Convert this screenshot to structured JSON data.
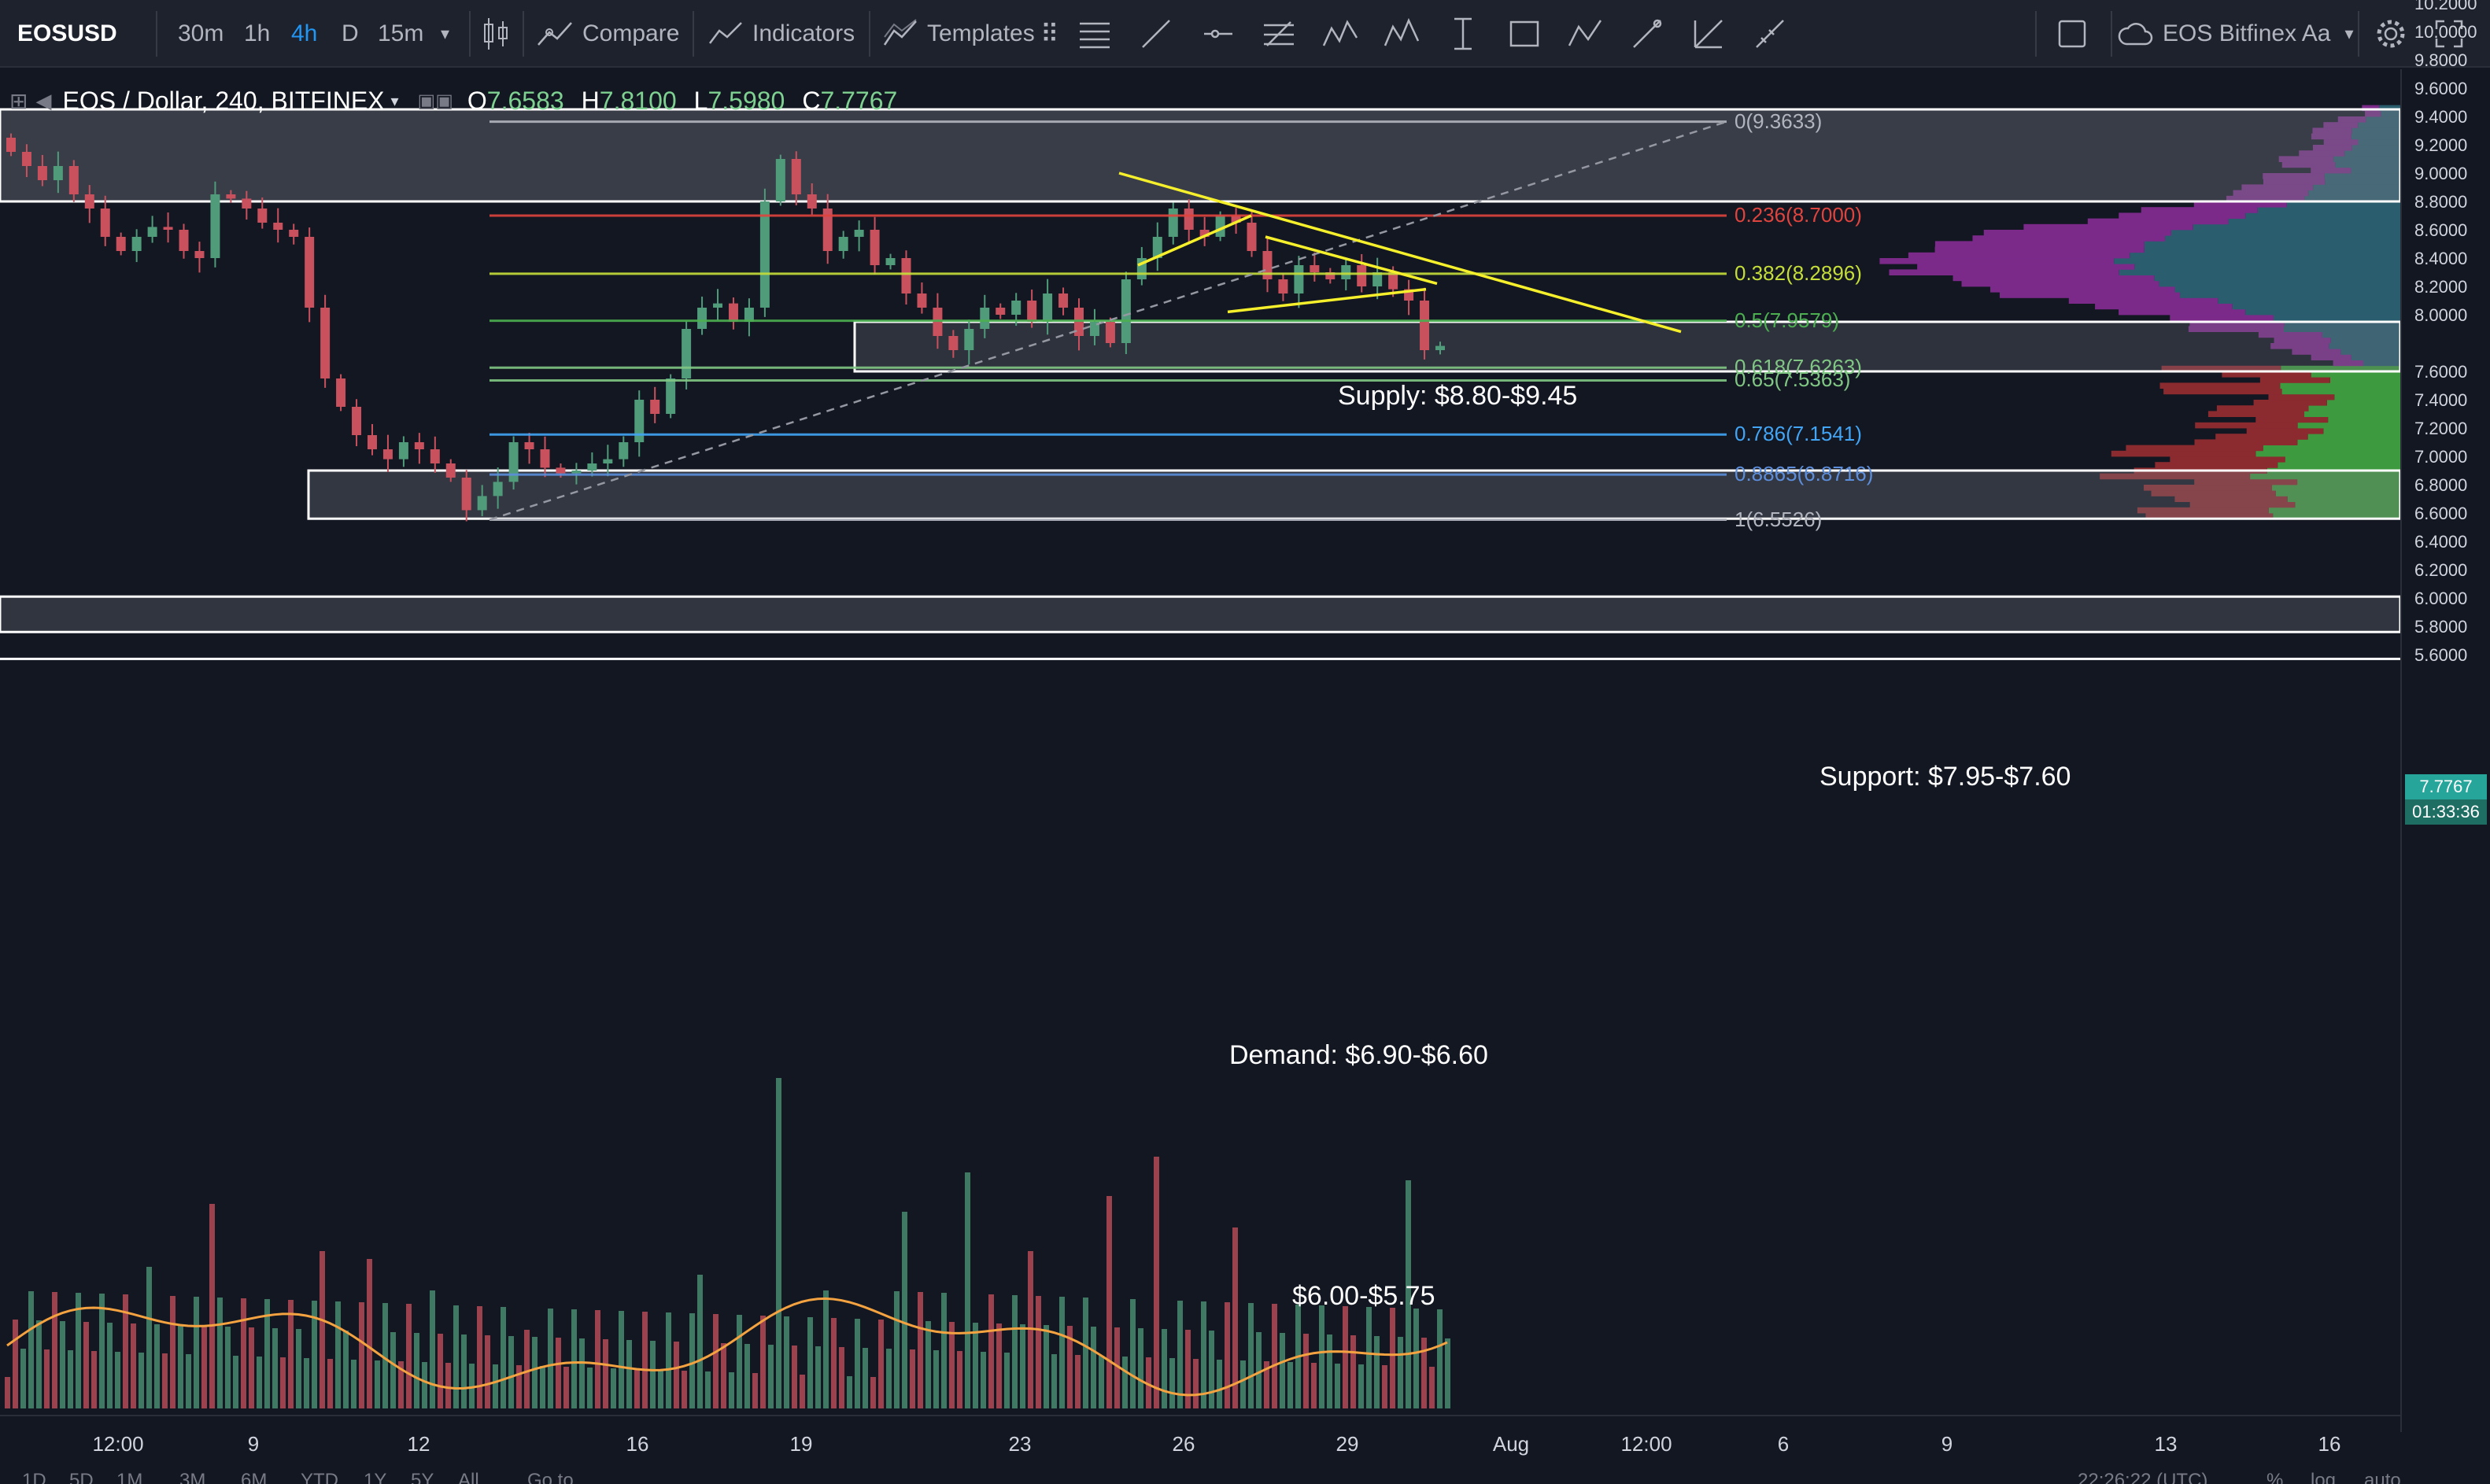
{
  "toolbar": {
    "symbol": "EOSUSD",
    "intervals": [
      "30m",
      "1h",
      "4h",
      "D",
      "15m"
    ],
    "active_interval": "4h",
    "compare_label": "Compare",
    "indicators_label": "Indicators",
    "templates_label": "Templates",
    "drawing_tools": [
      "horizontal-lines-icon",
      "trend-line-icon",
      "horizontal-ray-icon",
      "pitchfork-icon",
      "xabcd-pattern-icon",
      "elliott-wave-icon",
      "measure-icon",
      "rectangle-icon",
      "abcd-pattern-icon",
      "brush-icon",
      "fib-fan-icon",
      "ruler-icon"
    ],
    "layout_name": "EOS Bitfinex Aa"
  },
  "legend": {
    "title": "EOS / Dollar, 240, BITFINEX",
    "open_label": "O",
    "open": "7.6583",
    "high_label": "H",
    "high": "7.8100",
    "low_label": "L",
    "low": "7.5980",
    "close_label": "C",
    "close": "7.7767"
  },
  "colors": {
    "up": "#4f9b7a",
    "down": "#c9515e",
    "supply_zone": "#5a5d66",
    "fib_236": "#e0443e",
    "fib_382": "#c6de3a",
    "fib_50": "#4caf50",
    "fib_618": "#81c784",
    "fib_786": "#42a5f5",
    "fib_886": "#5c8edb",
    "trendline": "#f5f02b",
    "ma": "#f4a340"
  },
  "zones": {
    "supply": "Supply: $8.80-$9.45",
    "support": "Support: $7.95-$7.60",
    "demand": "Demand: $6.90-$6.60",
    "lower": "$6.00-$5.75"
  },
  "fib_levels": [
    {
      "label": "0(9.3633)",
      "price": 9.3633
    },
    {
      "label": "0.236(8.7000)",
      "price": 8.7
    },
    {
      "label": "0.382(8.2896)",
      "price": 8.2896
    },
    {
      "label": "0.5(7.9579)",
      "price": 7.9579
    },
    {
      "label": "0.618(7.6263)",
      "price": 7.6263
    },
    {
      "label": "0.65(7.5363)",
      "price": 7.5363
    },
    {
      "label": "0.786(7.1541)",
      "price": 7.1541
    },
    {
      "label": "0.8865(6.8716)",
      "price": 6.8716
    },
    {
      "label": "1(6.5526)",
      "price": 6.5526
    }
  ],
  "price_axis": {
    "ticks": [
      "10.2000",
      "10.0000",
      "9.8000",
      "9.6000",
      "9.4000",
      "9.2000",
      "9.0000",
      "8.8000",
      "8.6000",
      "8.4000",
      "8.2000",
      "8.0000",
      "7.6000",
      "7.4000",
      "7.2000",
      "7.0000",
      "6.8000",
      "6.6000",
      "6.4000",
      "6.2000",
      "6.0000",
      "5.8000",
      "5.6000"
    ],
    "last_price": "7.7767",
    "countdown": "01:33:36"
  },
  "time_axis": {
    "ticks": [
      "12:00",
      "9",
      "12",
      "16",
      "19",
      "23",
      "26",
      "29",
      "Aug",
      "12:00",
      "6",
      "9",
      "13",
      "16"
    ]
  },
  "bottom_bar": {
    "ranges": [
      "1D",
      "5D",
      "1M",
      "3M",
      "6M",
      "YTD",
      "1Y",
      "5Y",
      "All"
    ],
    "goto": "Go to...",
    "clock": "22:26:22 (UTC)",
    "percent": "%",
    "log": "log",
    "auto": "auto"
  }
}
